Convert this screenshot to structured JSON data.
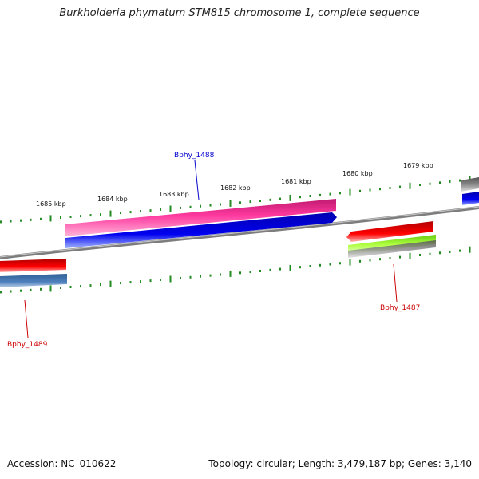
{
  "title": "Burkholderia phymatum STM815 chromosome 1, complete sequence",
  "footer": {
    "accession": "Accession: NC_010622",
    "summary": "Topology: circular; Length: 3,479,187 bp; Genes: 3,140"
  },
  "ticks": [
    {
      "label": "1685 kbp"
    },
    {
      "label": "1684 kbp"
    },
    {
      "label": "1683 kbp"
    },
    {
      "label": "1682 kbp"
    },
    {
      "label": "1681 kbp"
    },
    {
      "label": "1680 kbp"
    },
    {
      "label": "1679 kbp"
    }
  ],
  "genes": [
    {
      "name": "Bphy_1488",
      "color": "#0000cc"
    },
    {
      "name": "Bphy_1487",
      "color": "#cc0000"
    },
    {
      "name": "Bphy_1489",
      "color": "#cc0000"
    }
  ],
  "colors": {
    "backbone": "#888888",
    "tick": "#228b22",
    "magenta_feature": "#ff3399",
    "blue_feature": "#0000ee",
    "red_feature": "#ee0000",
    "lime_feature": "#99ff33",
    "steel_feature": "#4f81bd",
    "gray_feature": "#666666"
  }
}
